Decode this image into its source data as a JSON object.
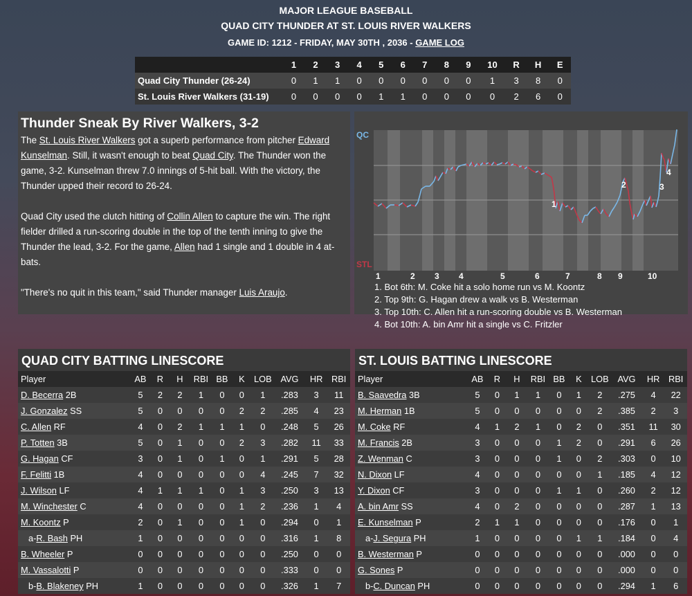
{
  "header": {
    "league": "MAJOR LEAGUE BASEBALL",
    "matchup": "QUAD CITY THUNDER AT ST. LOUIS RIVER WALKERS",
    "gameinfo": "GAME ID: 1212 - FRIDAY, MAY 30TH , 2036 - ",
    "gamelog": "GAME LOG"
  },
  "linescore": {
    "headers": [
      "",
      "1",
      "2",
      "3",
      "4",
      "5",
      "6",
      "7",
      "8",
      "9",
      "10",
      "R",
      "H",
      "E"
    ],
    "rows": [
      [
        "Quad City Thunder (26-24)",
        "0",
        "1",
        "1",
        "0",
        "0",
        "0",
        "0",
        "0",
        "0",
        "1",
        "3",
        "8",
        "0"
      ],
      [
        "St. Louis River Walkers (31-19)",
        "0",
        "0",
        "0",
        "0",
        "1",
        "1",
        "0",
        "0",
        "0",
        "0",
        "2",
        "6",
        "0"
      ]
    ]
  },
  "story": {
    "title": "Thunder Sneak By River Walkers, 3-2",
    "p1": [
      "The ",
      "St. Louis River Walkers",
      " got a superb performance from pitcher ",
      "Edward Kunselman",
      ". Still, it wasn't enough to beat ",
      "Quad City",
      ". The Thunder won the game, 3-2. Kunselman threw 7.0 innings of 5-hit ball. With the victory, the Thunder upped their record to 26-24."
    ],
    "p2": [
      "Quad City used the clutch hitting of ",
      "Collin Allen",
      " to capture the win. The right fielder drilled a run-scoring double in the top of the tenth inning to give the Thunder the lead, 3-2. For the game, ",
      "Allen",
      " had 1 single and 1 double in 4 at-bats."
    ],
    "p3": [
      "\"There's no quit in this team,\" said Thunder manager ",
      "Luis Araujo",
      "."
    ]
  },
  "winprob": {
    "top_label": "QC",
    "bottom_label": "STL",
    "innings": [
      "1",
      "2",
      "3",
      "4",
      "5",
      "6",
      "7",
      "8",
      "9",
      "10"
    ],
    "markers": [
      "1",
      "2",
      "3",
      "4"
    ],
    "away_color": "#7ab8e8",
    "home_color": "#c23848"
  },
  "notes": [
    "1. Bot 6th: M. Coke hit a solo home run vs M. Koontz",
    "2. Top 9th: G. Hagan drew a walk vs B. Westerman",
    "3. Top 10th: C. Allen hit a run-scoring double vs B. Westerman",
    "4. Bot 10th: A. bin Amr hit a single vs C. Fritzler"
  ],
  "batting_columns": [
    "Player",
    "AB",
    "R",
    "H",
    "RBI",
    "BB",
    "K",
    "LOB",
    "AVG",
    "HR",
    "RBI"
  ],
  "away_batting": {
    "title": "QUAD CITY BATTING LINESCORE",
    "rows": [
      [
        "",
        "D. Becerra",
        " 2B",
        "5",
        "2",
        "2",
        "1",
        "0",
        "0",
        "1",
        ".283",
        "3",
        "11"
      ],
      [
        "",
        "J. Gonzalez",
        " SS",
        "5",
        "0",
        "0",
        "0",
        "0",
        "2",
        "2",
        ".285",
        "4",
        "23"
      ],
      [
        "",
        "C. Allen",
        " RF",
        "4",
        "0",
        "2",
        "1",
        "1",
        "1",
        "0",
        ".248",
        "5",
        "26"
      ],
      [
        "",
        "P. Totten",
        " 3B",
        "5",
        "0",
        "1",
        "0",
        "0",
        "2",
        "3",
        ".282",
        "11",
        "33"
      ],
      [
        "",
        "G. Hagan",
        " CF",
        "3",
        "0",
        "1",
        "0",
        "1",
        "0",
        "1",
        ".291",
        "5",
        "28"
      ],
      [
        "",
        "F. Felitti",
        " 1B",
        "4",
        "0",
        "0",
        "0",
        "0",
        "0",
        "4",
        ".245",
        "7",
        "32"
      ],
      [
        "",
        "J. Wilson",
        " LF",
        "4",
        "1",
        "1",
        "1",
        "0",
        "1",
        "3",
        ".250",
        "3",
        "13"
      ],
      [
        "",
        "M. Winchester",
        " C",
        "4",
        "0",
        "0",
        "0",
        "0",
        "1",
        "2",
        ".236",
        "1",
        "4"
      ],
      [
        "",
        "M. Koontz",
        " P",
        "2",
        "0",
        "1",
        "0",
        "0",
        "1",
        "0",
        ".294",
        "0",
        "1"
      ],
      [
        "a-",
        "R. Bash",
        " PH",
        "1",
        "0",
        "0",
        "0",
        "0",
        "0",
        "0",
        ".316",
        "1",
        "8"
      ],
      [
        "",
        "B. Wheeler",
        " P",
        "0",
        "0",
        "0",
        "0",
        "0",
        "0",
        "0",
        ".250",
        "0",
        "0"
      ],
      [
        "",
        "M. Vassalotti",
        " P",
        "0",
        "0",
        "0",
        "0",
        "0",
        "0",
        "0",
        ".333",
        "0",
        "0"
      ],
      [
        "b-",
        "B. Blakeney",
        " PH",
        "1",
        "0",
        "0",
        "0",
        "0",
        "0",
        "0",
        ".326",
        "1",
        "7"
      ]
    ]
  },
  "home_batting": {
    "title": "ST. LOUIS BATTING LINESCORE",
    "rows": [
      [
        "",
        "B. Saavedra",
        " 3B",
        "5",
        "0",
        "1",
        "1",
        "0",
        "1",
        "2",
        ".275",
        "4",
        "22"
      ],
      [
        "",
        "M. Herman",
        " 1B",
        "5",
        "0",
        "0",
        "0",
        "0",
        "0",
        "2",
        ".385",
        "2",
        "3"
      ],
      [
        "",
        "M. Coke",
        " RF",
        "4",
        "1",
        "2",
        "1",
        "0",
        "2",
        "0",
        ".351",
        "11",
        "30"
      ],
      [
        "",
        "M. Francis",
        " 2B",
        "3",
        "0",
        "0",
        "0",
        "1",
        "2",
        "0",
        ".291",
        "6",
        "26"
      ],
      [
        "",
        "Z. Wenman",
        " C",
        "3",
        "0",
        "0",
        "0",
        "1",
        "0",
        "2",
        ".303",
        "0",
        "10"
      ],
      [
        "",
        "N. Dixon",
        " LF",
        "4",
        "0",
        "0",
        "0",
        "0",
        "0",
        "1",
        ".185",
        "4",
        "12"
      ],
      [
        "",
        "Y. Dixon",
        " CF",
        "3",
        "0",
        "0",
        "0",
        "1",
        "1",
        "0",
        ".260",
        "2",
        "12"
      ],
      [
        "",
        "A. bin Amr",
        " SS",
        "4",
        "0",
        "2",
        "0",
        "0",
        "0",
        "0",
        ".287",
        "1",
        "13"
      ],
      [
        "",
        "E. Kunselman",
        " P",
        "2",
        "1",
        "1",
        "0",
        "0",
        "0",
        "0",
        ".176",
        "0",
        "1"
      ],
      [
        "a-",
        "J. Segura",
        " PH",
        "1",
        "0",
        "0",
        "0",
        "0",
        "1",
        "1",
        ".184",
        "0",
        "4"
      ],
      [
        "",
        "B. Westerman",
        " P",
        "0",
        "0",
        "0",
        "0",
        "0",
        "0",
        "0",
        ".000",
        "0",
        "0"
      ],
      [
        "",
        "G. Sones",
        " P",
        "0",
        "0",
        "0",
        "0",
        "0",
        "0",
        "0",
        ".000",
        "0",
        "0"
      ],
      [
        "b-",
        "C. Duncan",
        " PH",
        "0",
        "0",
        "0",
        "0",
        "0",
        "0",
        "0",
        ".294",
        "1",
        "6"
      ]
    ]
  }
}
